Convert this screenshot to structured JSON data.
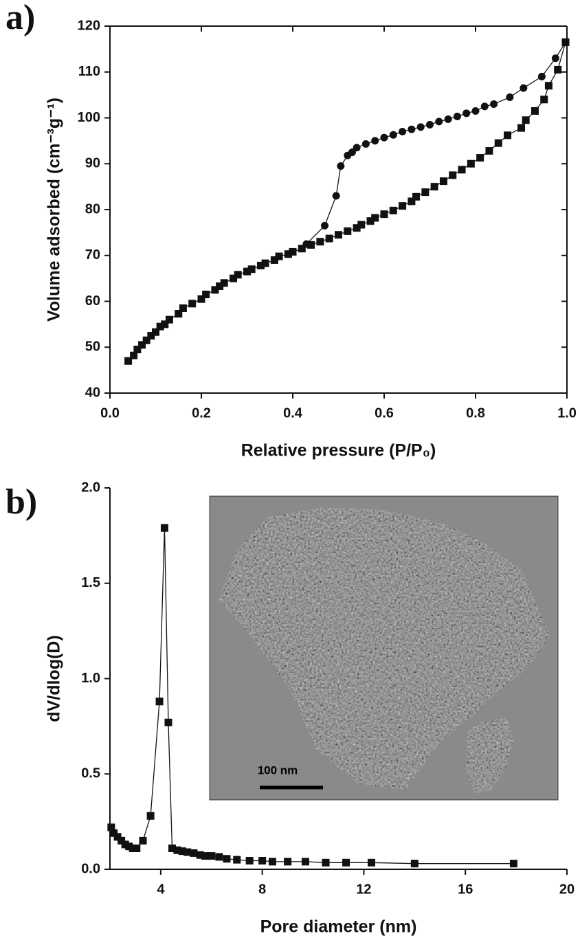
{
  "chart_data": [
    {
      "type": "line",
      "panel_label": "a)",
      "x_label": "Relative pressure (P/P₀)",
      "y_label": "Volume adsorbed (cm⁻³g⁻¹)",
      "xlim": [
        0,
        1
      ],
      "ylim": [
        40,
        120
      ],
      "xticks": [
        {
          "value": 0,
          "label": "0.0"
        },
        0.2,
        0.4,
        0.6,
        0.8,
        {
          "value": 1,
          "label": "1.0"
        }
      ],
      "yticks": [
        40,
        50,
        60,
        70,
        80,
        90,
        100,
        110,
        120
      ],
      "frame": true,
      "series": [
        {
          "marker": "square",
          "color": "#111111",
          "x": [
            0.04,
            0.052,
            0.06,
            0.07,
            0.08,
            0.09,
            0.1,
            0.11,
            0.12,
            0.13,
            0.15,
            0.16,
            0.18,
            0.2,
            0.21,
            0.23,
            0.24,
            0.25,
            0.27,
            0.28,
            0.3,
            0.31,
            0.33,
            0.34,
            0.36,
            0.37,
            0.39,
            0.4,
            0.42,
            0.44,
            0.46,
            0.48,
            0.5,
            0.52,
            0.54,
            0.55,
            0.57,
            0.58,
            0.6,
            0.62,
            0.64,
            0.66,
            0.67,
            0.69,
            0.71,
            0.73,
            0.75,
            0.77,
            0.79,
            0.81,
            0.83,
            0.85,
            0.87,
            0.9,
            0.91,
            0.93,
            0.95,
            0.96,
            0.98,
            0.997
          ],
          "values": [
            47,
            48.2,
            49.5,
            50.5,
            51.5,
            52.5,
            53.3,
            54.5,
            55,
            56,
            57.3,
            58.5,
            59.5,
            60.5,
            61.5,
            62.5,
            63.3,
            64,
            65,
            65.8,
            66.5,
            67,
            67.8,
            68.3,
            69,
            69.8,
            70.3,
            70.8,
            71.5,
            72.3,
            73,
            73.7,
            74.5,
            75.3,
            76,
            76.7,
            77.5,
            78.2,
            79,
            79.8,
            80.8,
            81.8,
            82.8,
            83.8,
            85,
            86.2,
            87.5,
            88.7,
            90,
            91.3,
            92.8,
            94.5,
            96.2,
            97.8,
            99.5,
            101.5,
            104,
            107,
            110.5,
            116.5
          ]
        },
        {
          "marker": "circle",
          "color": "#111111",
          "x": [
            0.43,
            0.47,
            0.495,
            0.505,
            0.52,
            0.53,
            0.54,
            0.56,
            0.58,
            0.6,
            0.62,
            0.64,
            0.66,
            0.68,
            0.7,
            0.72,
            0.74,
            0.76,
            0.78,
            0.8,
            0.82,
            0.84,
            0.875,
            0.905,
            0.945,
            0.975,
            0.997
          ],
          "values": [
            72.5,
            76.5,
            83,
            89.5,
            91.8,
            92.5,
            93.5,
            94.3,
            95,
            95.7,
            96.3,
            97,
            97.5,
            98,
            98.5,
            99.2,
            99.7,
            100.3,
            101,
            101.5,
            102.5,
            103,
            104.5,
            106.5,
            109,
            113,
            116.5
          ]
        }
      ]
    },
    {
      "type": "line",
      "panel_label": "b)",
      "x_label": "Pore diameter (nm)",
      "y_label": "dV/dlog(D)",
      "xlim": [
        2,
        20
      ],
      "ylim": [
        0,
        2
      ],
      "xticks": [
        4,
        8,
        12,
        16,
        20
      ],
      "yticks": [
        {
          "value": 0,
          "label": "0.0"
        },
        0.5,
        {
          "value": 1,
          "label": "1.0"
        },
        1.5,
        {
          "value": 2,
          "label": "2.0"
        }
      ],
      "frame": false,
      "inset": {
        "scale_bar_label": "100 nm"
      },
      "series": [
        {
          "marker": "square",
          "color": "#111111",
          "x": [
            2.05,
            2.15,
            2.3,
            2.45,
            2.6,
            2.75,
            2.9,
            3.05,
            3.3,
            3.6,
            3.95,
            4.15,
            4.3,
            4.45,
            4.65,
            4.85,
            5.05,
            5.3,
            5.55,
            5.75,
            6.0,
            6.3,
            6.6,
            7.0,
            7.5,
            8.0,
            8.4,
            9.0,
            9.7,
            10.5,
            11.3,
            12.3,
            14.0,
            17.9
          ],
          "values": [
            0.22,
            0.19,
            0.17,
            0.15,
            0.13,
            0.12,
            0.11,
            0.11,
            0.15,
            0.28,
            0.88,
            1.79,
            0.77,
            0.11,
            0.1,
            0.095,
            0.09,
            0.085,
            0.075,
            0.07,
            0.07,
            0.065,
            0.055,
            0.05,
            0.045,
            0.045,
            0.04,
            0.04,
            0.04,
            0.035,
            0.035,
            0.035,
            0.03,
            0.03
          ]
        }
      ]
    }
  ]
}
